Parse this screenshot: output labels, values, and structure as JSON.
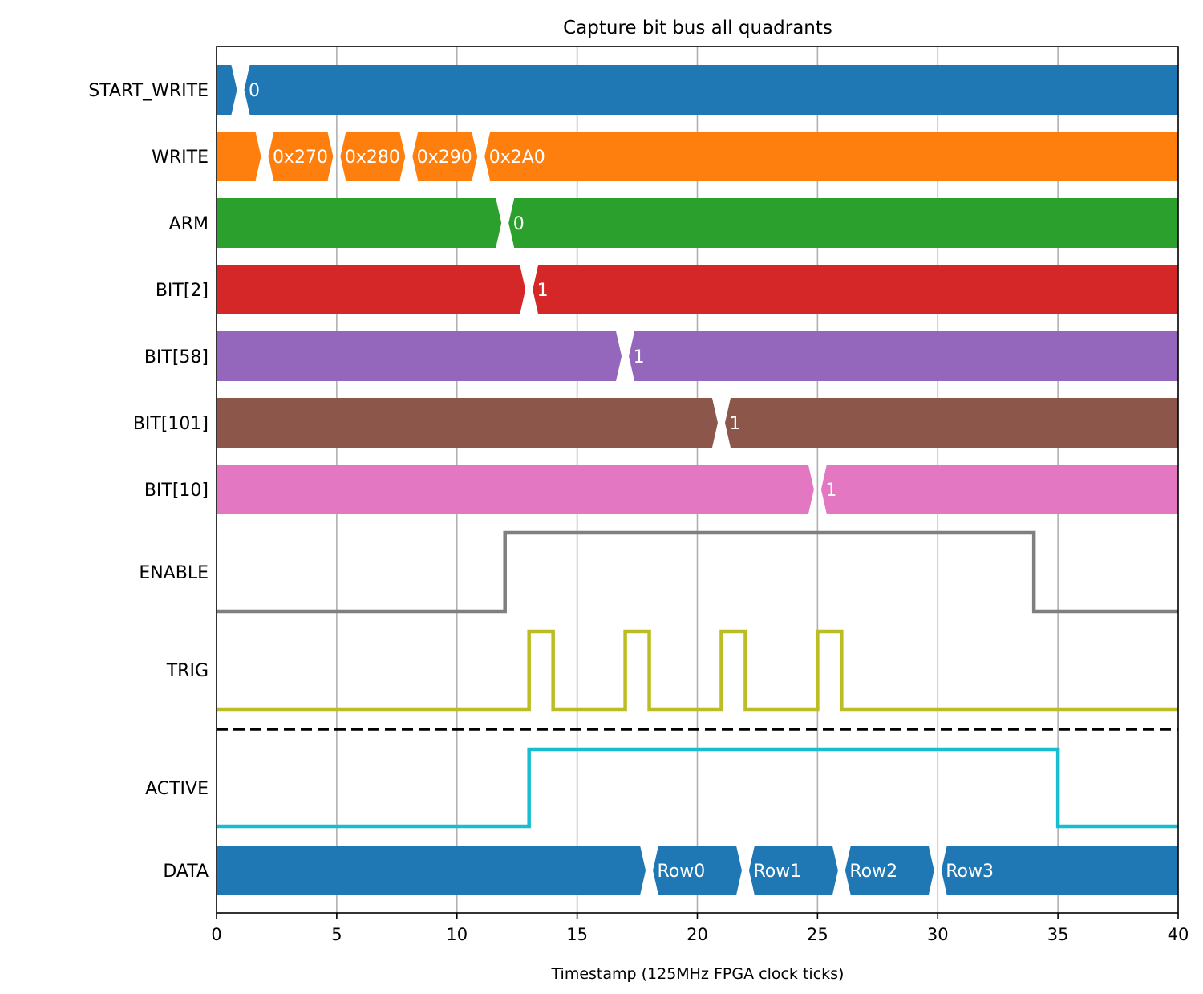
{
  "chart_data": {
    "type": "timing",
    "title": "Capture bit bus all quadrants",
    "xlabel": "Timestamp (125MHz FPGA clock ticks)",
    "ylabel": "",
    "xlim": [
      0,
      40
    ],
    "xticks": [
      0,
      5,
      10,
      15,
      20,
      25,
      30,
      35,
      40
    ],
    "grid": "x",
    "separator_after_signal": "TRIG",
    "signals": [
      {
        "name": "START_WRITE",
        "kind": "bus",
        "color": "#1f77b4",
        "segments": [
          {
            "t": 1,
            "label": "0"
          }
        ]
      },
      {
        "name": "WRITE",
        "kind": "bus",
        "color": "#ff7f0e",
        "segments": [
          {
            "t": 2,
            "label": "0x270"
          },
          {
            "t": 5,
            "label": "0x280"
          },
          {
            "t": 8,
            "label": "0x290"
          },
          {
            "t": 11,
            "label": "0x2A0"
          }
        ]
      },
      {
        "name": "ARM",
        "kind": "bus",
        "color": "#2ca02c",
        "segments": [
          {
            "t": 12,
            "label": "0"
          }
        ]
      },
      {
        "name": "BIT[2]",
        "kind": "bus",
        "color": "#d62728",
        "segments": [
          {
            "t": 13,
            "label": "1"
          }
        ]
      },
      {
        "name": "BIT[58]",
        "kind": "bus",
        "color": "#9467bd",
        "segments": [
          {
            "t": 17,
            "label": "1"
          }
        ]
      },
      {
        "name": "BIT[101]",
        "kind": "bus",
        "color": "#8c564b",
        "segments": [
          {
            "t": 21,
            "label": "1"
          }
        ]
      },
      {
        "name": "BIT[10]",
        "kind": "bus",
        "color": "#e377c2",
        "segments": [
          {
            "t": 25,
            "label": "1"
          }
        ]
      },
      {
        "name": "ENABLE",
        "kind": "bit",
        "color": "#7f7f7f",
        "initial": 0,
        "edges": [
          12,
          34
        ]
      },
      {
        "name": "TRIG",
        "kind": "bit",
        "color": "#bcbd22",
        "initial": 0,
        "edges": [
          13,
          14,
          17,
          18,
          21,
          22,
          25,
          26
        ]
      },
      {
        "name": "ACTIVE",
        "kind": "bit",
        "color": "#17becf",
        "initial": 0,
        "edges": [
          13,
          35
        ]
      },
      {
        "name": "DATA",
        "kind": "bus",
        "color": "#1f77b4",
        "segments": [
          {
            "t": 18,
            "label": "Row0"
          },
          {
            "t": 22,
            "label": "Row1"
          },
          {
            "t": 26,
            "label": "Row2"
          },
          {
            "t": 30,
            "label": "Row3"
          }
        ]
      }
    ]
  }
}
